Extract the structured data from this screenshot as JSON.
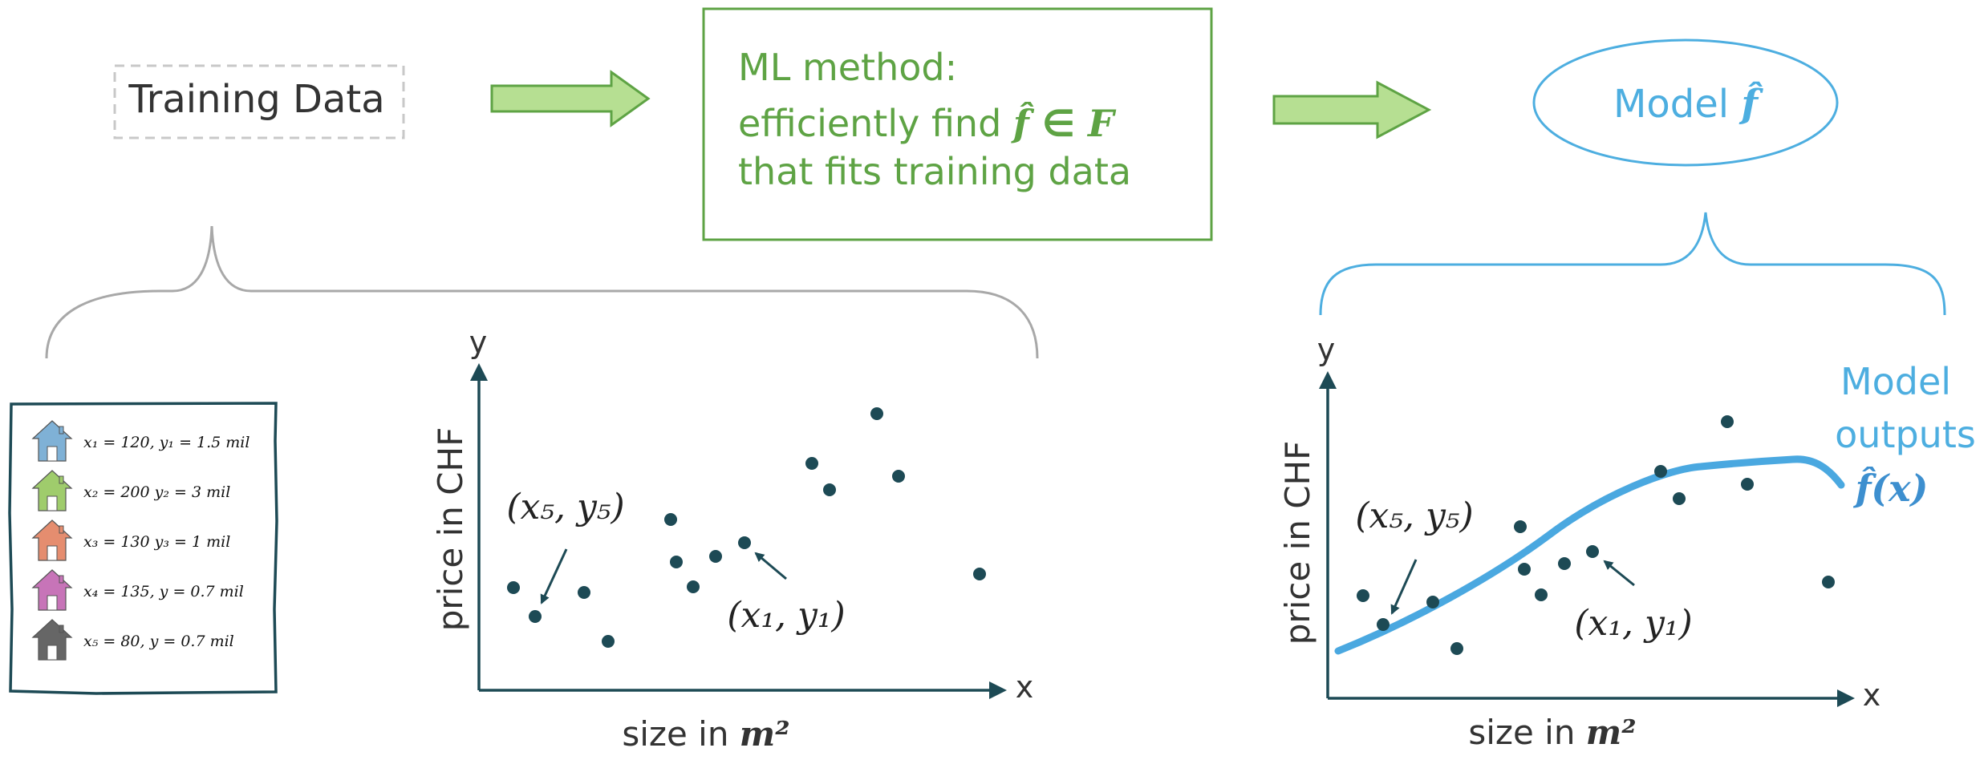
{
  "colors": {
    "green": "#5ea344",
    "green_fill": "#b6df92",
    "blue": "#4daee0",
    "curve": "#4aa8e0",
    "teal": "#1d4a55",
    "gray_brace": "#a8a8a8",
    "gray_box": "#c8c8c8",
    "text_dark": "#333333"
  },
  "step1": {
    "label": "Training Data"
  },
  "step2": {
    "line1": "ML method:",
    "line2_pre": "efficiently find ",
    "f_hat": "f̂",
    "in_symbol": " ∈ ",
    "set_F": "F",
    "line3": "that fits training data"
  },
  "step3": {
    "pre": "Model ",
    "f_hat": "f̂"
  },
  "dataset": {
    "items": [
      {
        "icon": "house-blue-icon",
        "color": "#7fb1d6",
        "text": "x₁ = 120, y₁ = 1.5 mil"
      },
      {
        "icon": "house-green-icon",
        "color": "#9fcc6c",
        "text": "x₂ = 200  y₂ = 3 mil"
      },
      {
        "icon": "house-orange-icon",
        "color": "#e58d6f",
        "text": "x₃ = 130  y₃ = 1 mil"
      },
      {
        "icon": "house-purple-icon",
        "color": "#c774b8",
        "text": "x₄ = 135,  y = 0.7 mil"
      },
      {
        "icon": "house-gray-icon",
        "color": "#666666",
        "text": "x₅ = 80,  y = 0.7 mil"
      }
    ]
  },
  "plot_left": {
    "ylabel": "price in CHF",
    "xlabel_text": "size in ",
    "xlabel_unit": "m²",
    "x_axis_letter": "x",
    "y_axis_letter": "y",
    "annot_1": "(x₁, y₁)",
    "annot_5": "(x₅, y₅)"
  },
  "plot_right": {
    "ylabel": "price in CHF",
    "xlabel_text": "size in ",
    "xlabel_unit": "m²",
    "x_axis_letter": "x",
    "y_axis_letter": "y",
    "annot_1": "(x₁, y₁)",
    "annot_5": "(x₅, y₅)",
    "legend_line1": "Model",
    "legend_line2": "outputs",
    "legend_fx": "f̂(x)"
  }
}
